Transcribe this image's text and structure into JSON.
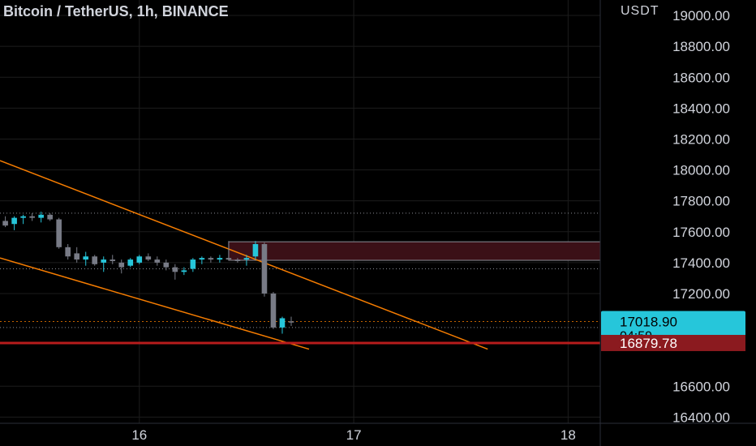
{
  "symbol_title": "Bitcoin / TetherUS, 1h, BINANCE",
  "colors": {
    "background": "#000000",
    "grid": "#1c1c1c",
    "text": "#d1d4dc",
    "bull": "#26c6da",
    "bear": "#787b86",
    "trendline": "#f57c00",
    "support_line": "#b71c1c",
    "zone_fill": "#3b1017",
    "price_tag_bg": "#26c6da",
    "support_tag_bg": "#8b1a1f"
  },
  "chart_data": {
    "type": "candlestick",
    "unit_label": "USDT",
    "y_ticks": [
      "19000.00",
      "18800.00",
      "18600.00",
      "18400.00",
      "18200.00",
      "18000.00",
      "17800.00",
      "17600.00",
      "17400.00",
      "17200.00",
      "16600.00",
      "16400.00"
    ],
    "y_range": [
      16360,
      19100
    ],
    "x_ticks": [
      "16",
      "17",
      "18"
    ],
    "x_tick_hours": [
      0,
      24,
      48
    ],
    "x_range_hours": [
      -15.6,
      51.6
    ],
    "current_price": {
      "value": "17018.90",
      "countdown": "04:59"
    },
    "support": {
      "value": "16879.78"
    },
    "candles": [
      {
        "t": -15.0,
        "o": 17670,
        "h": 17700,
        "l": 17630,
        "c": 17640
      },
      {
        "t": -14.0,
        "o": 17650,
        "h": 17700,
        "l": 17610,
        "c": 17690
      },
      {
        "t": -13.0,
        "o": 17690,
        "h": 17710,
        "l": 17650,
        "c": 17700
      },
      {
        "t": -12.0,
        "o": 17700,
        "h": 17720,
        "l": 17670,
        "c": 17690
      },
      {
        "t": -11.0,
        "o": 17690,
        "h": 17730,
        "l": 17660,
        "c": 17710
      },
      {
        "t": -10.0,
        "o": 17710,
        "h": 17720,
        "l": 17670,
        "c": 17680
      },
      {
        "t": -9.0,
        "o": 17680,
        "h": 17690,
        "l": 17490,
        "c": 17500
      },
      {
        "t": -8.0,
        "o": 17500,
        "h": 17520,
        "l": 17420,
        "c": 17440
      },
      {
        "t": -7.0,
        "o": 17460,
        "h": 17500,
        "l": 17400,
        "c": 17420
      },
      {
        "t": -6.0,
        "o": 17420,
        "h": 17470,
        "l": 17380,
        "c": 17440
      },
      {
        "t": -5.0,
        "o": 17440,
        "h": 17450,
        "l": 17380,
        "c": 17390
      },
      {
        "t": -4.0,
        "o": 17400,
        "h": 17440,
        "l": 17340,
        "c": 17420
      },
      {
        "t": -3.0,
        "o": 17420,
        "h": 17450,
        "l": 17390,
        "c": 17410
      },
      {
        "t": -2.0,
        "o": 17400,
        "h": 17420,
        "l": 17330,
        "c": 17370
      },
      {
        "t": -1.0,
        "o": 17380,
        "h": 17430,
        "l": 17370,
        "c": 17420
      },
      {
        "t": 0.0,
        "o": 17400,
        "h": 17450,
        "l": 17390,
        "c": 17440
      },
      {
        "t": 1.0,
        "o": 17440,
        "h": 17460,
        "l": 17410,
        "c": 17420
      },
      {
        "t": 2.0,
        "o": 17420,
        "h": 17440,
        "l": 17380,
        "c": 17400
      },
      {
        "t": 3.0,
        "o": 17400,
        "h": 17420,
        "l": 17350,
        "c": 17370
      },
      {
        "t": 4.0,
        "o": 17370,
        "h": 17390,
        "l": 17290,
        "c": 17340
      },
      {
        "t": 5.0,
        "o": 17340,
        "h": 17370,
        "l": 17320,
        "c": 17350
      },
      {
        "t": 6.0,
        "o": 17360,
        "h": 17430,
        "l": 17340,
        "c": 17420
      },
      {
        "t": 7.0,
        "o": 17420,
        "h": 17440,
        "l": 17390,
        "c": 17430
      },
      {
        "t": 8.0,
        "o": 17430,
        "h": 17440,
        "l": 17400,
        "c": 17420
      },
      {
        "t": 9.0,
        "o": 17420,
        "h": 17450,
        "l": 17400,
        "c": 17430
      },
      {
        "t": 10.0,
        "o": 17430,
        "h": 17540,
        "l": 17420,
        "c": 17420
      },
      {
        "t": 11.0,
        "o": 17420,
        "h": 17430,
        "l": 17400,
        "c": 17410
      },
      {
        "t": 12.0,
        "o": 17420,
        "h": 17450,
        "l": 17380,
        "c": 17430
      },
      {
        "t": 13.0,
        "o": 17440,
        "h": 17540,
        "l": 17420,
        "c": 17520
      },
      {
        "t": 14.0,
        "o": 17520,
        "h": 17530,
        "l": 17180,
        "c": 17200
      },
      {
        "t": 15.0,
        "o": 17200,
        "h": 17210,
        "l": 16970,
        "c": 16980
      },
      {
        "t": 16.0,
        "o": 16980,
        "h": 17050,
        "l": 16940,
        "c": 17040
      },
      {
        "t": 17.0,
        "o": 17020,
        "h": 17050,
        "l": 16990,
        "c": 17019
      }
    ],
    "horizontal_dotted_levels": [
      17720,
      17360,
      16980
    ],
    "trendlines": [
      {
        "from": {
          "t": -15.6,
          "p": 18060
        },
        "to": {
          "t": 39.0,
          "p": 16840
        }
      },
      {
        "from": {
          "t": -15.6,
          "p": 17430
        },
        "to": {
          "t": 19.0,
          "p": 16840
        }
      }
    ],
    "zone": {
      "t_start": 10.0,
      "p_top": 17535,
      "p_bottom": 17415
    },
    "grid": true
  }
}
